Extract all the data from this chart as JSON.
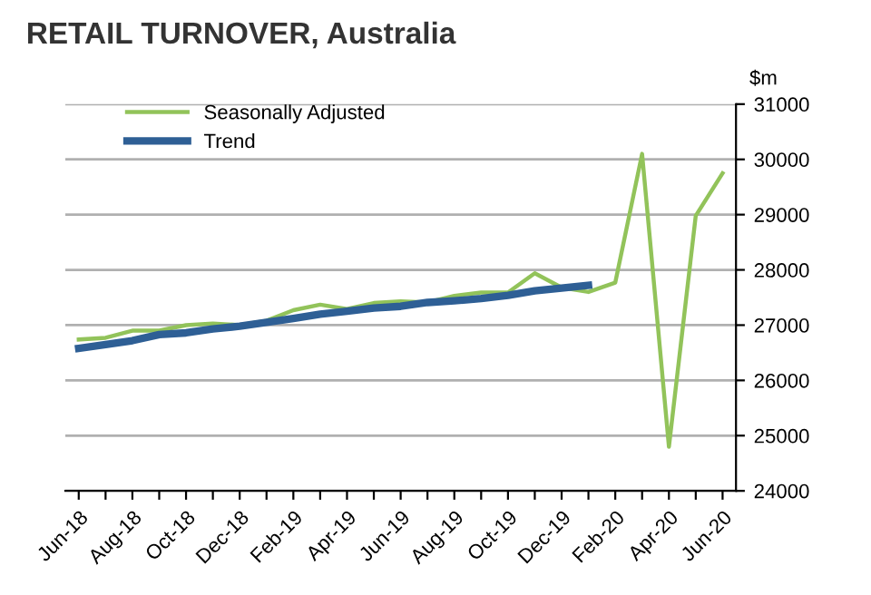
{
  "chart_data": {
    "type": "line",
    "title": "RETAIL TURNOVER, Australia",
    "ylabel": "$m",
    "categories": [
      "Jun-18",
      null,
      "Aug-18",
      null,
      "Oct-18",
      null,
      "Dec-18",
      null,
      "Feb-19",
      null,
      "Apr-19",
      null,
      "Jun-19",
      null,
      "Aug-19",
      null,
      "Oct-19",
      null,
      "Dec-19",
      null,
      "Feb-20",
      null,
      "Apr-20",
      null,
      "Jun-20"
    ],
    "series": [
      {
        "name": "Seasonally Adjusted",
        "color": "#92c35a",
        "values": [
          26740,
          26770,
          26900,
          26900,
          27000,
          27030,
          27000,
          27080,
          27270,
          27370,
          27290,
          27400,
          27430,
          27410,
          27530,
          27590,
          27590,
          27940,
          27680,
          27600,
          27770,
          30100,
          24800,
          28980,
          29750
        ]
      },
      {
        "name": "Trend",
        "color": "#2e5f95",
        "values": [
          26580,
          26650,
          26720,
          26830,
          26860,
          26930,
          26980,
          27050,
          27120,
          27200,
          27250,
          27310,
          27340,
          27410,
          27440,
          27480,
          27540,
          27620,
          27670,
          27720,
          null,
          null,
          null,
          null,
          null
        ]
      }
    ],
    "ylim": [
      24000,
      31000
    ],
    "yticks": [
      24000,
      25000,
      26000,
      27000,
      28000,
      29000,
      30000,
      31000
    ],
    "grid": "y",
    "legend": "top left",
    "marker": "none",
    "line_style": "solid"
  }
}
